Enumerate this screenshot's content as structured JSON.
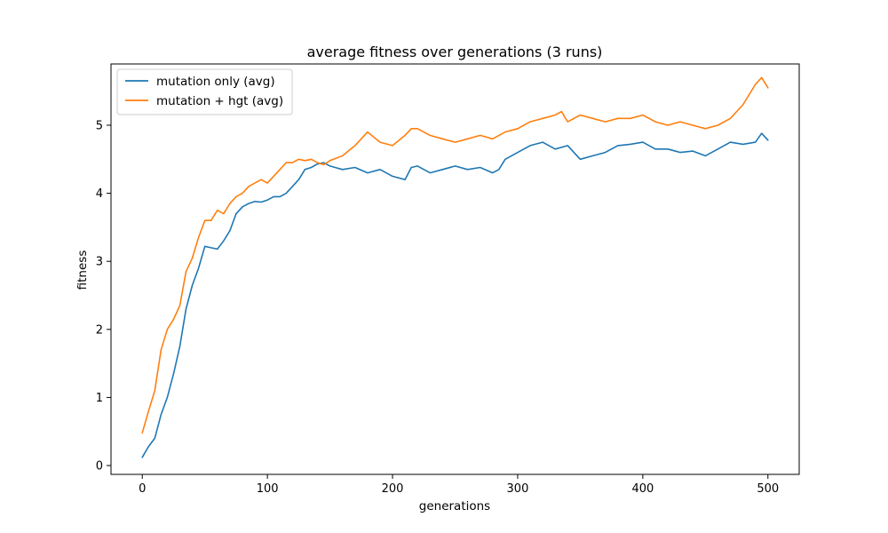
{
  "chart_data": {
    "type": "line",
    "title": "average fitness over generations (3 runs)",
    "xlabel": "generations",
    "ylabel": "fitness",
    "xlim": [
      -25,
      525
    ],
    "ylim": [
      -0.13,
      5.9
    ],
    "xticks": [
      0,
      100,
      200,
      300,
      400,
      500
    ],
    "yticks": [
      0,
      1,
      2,
      3,
      4,
      5
    ],
    "grid": false,
    "legend_position": "upper left",
    "series": [
      {
        "name": "mutation only (avg)",
        "color": "#1f77b4",
        "x": [
          0,
          5,
          10,
          15,
          20,
          25,
          30,
          35,
          40,
          45,
          50,
          55,
          60,
          65,
          70,
          75,
          80,
          85,
          90,
          95,
          100,
          105,
          110,
          115,
          120,
          125,
          130,
          135,
          140,
          145,
          150,
          160,
          170,
          180,
          190,
          200,
          210,
          215,
          220,
          230,
          240,
          250,
          260,
          270,
          280,
          285,
          290,
          300,
          310,
          320,
          330,
          340,
          350,
          360,
          370,
          380,
          390,
          400,
          410,
          420,
          430,
          440,
          450,
          460,
          470,
          480,
          490,
          495,
          500
        ],
        "y": [
          0.12,
          0.28,
          0.4,
          0.75,
          1.0,
          1.35,
          1.75,
          2.3,
          2.65,
          2.9,
          3.22,
          3.2,
          3.18,
          3.3,
          3.45,
          3.7,
          3.8,
          3.85,
          3.88,
          3.87,
          3.9,
          3.95,
          3.95,
          4.0,
          4.1,
          4.2,
          4.35,
          4.38,
          4.43,
          4.45,
          4.4,
          4.35,
          4.38,
          4.3,
          4.35,
          4.25,
          4.2,
          4.38,
          4.4,
          4.3,
          4.35,
          4.4,
          4.35,
          4.38,
          4.3,
          4.35,
          4.5,
          4.6,
          4.7,
          4.75,
          4.65,
          4.7,
          4.5,
          4.55,
          4.6,
          4.7,
          4.72,
          4.75,
          4.65,
          4.65,
          4.6,
          4.62,
          4.55,
          4.65,
          4.75,
          4.72,
          4.75,
          4.88,
          4.78
        ]
      },
      {
        "name": "mutation + hgt (avg)",
        "color": "#ff7f0e",
        "x": [
          0,
          5,
          10,
          15,
          20,
          25,
          30,
          35,
          40,
          45,
          50,
          55,
          60,
          65,
          70,
          75,
          80,
          85,
          90,
          95,
          100,
          105,
          110,
          115,
          120,
          125,
          130,
          135,
          140,
          145,
          150,
          160,
          170,
          180,
          190,
          200,
          210,
          215,
          220,
          230,
          240,
          250,
          260,
          270,
          280,
          290,
          300,
          310,
          320,
          330,
          335,
          340,
          350,
          360,
          370,
          380,
          390,
          400,
          410,
          420,
          430,
          440,
          450,
          460,
          470,
          480,
          490,
          495,
          500
        ],
        "y": [
          0.48,
          0.8,
          1.1,
          1.7,
          2.0,
          2.15,
          2.35,
          2.85,
          3.05,
          3.35,
          3.6,
          3.6,
          3.75,
          3.7,
          3.85,
          3.95,
          4.0,
          4.1,
          4.15,
          4.2,
          4.15,
          4.25,
          4.35,
          4.45,
          4.45,
          4.5,
          4.48,
          4.5,
          4.45,
          4.42,
          4.48,
          4.55,
          4.7,
          4.9,
          4.75,
          4.7,
          4.85,
          4.95,
          4.95,
          4.85,
          4.8,
          4.75,
          4.8,
          4.85,
          4.8,
          4.9,
          4.95,
          5.05,
          5.1,
          5.15,
          5.2,
          5.05,
          5.15,
          5.1,
          5.05,
          5.1,
          5.1,
          5.15,
          5.05,
          5.0,
          5.05,
          5.0,
          4.95,
          5.0,
          5.1,
          5.3,
          5.6,
          5.7,
          5.55
        ]
      }
    ]
  }
}
